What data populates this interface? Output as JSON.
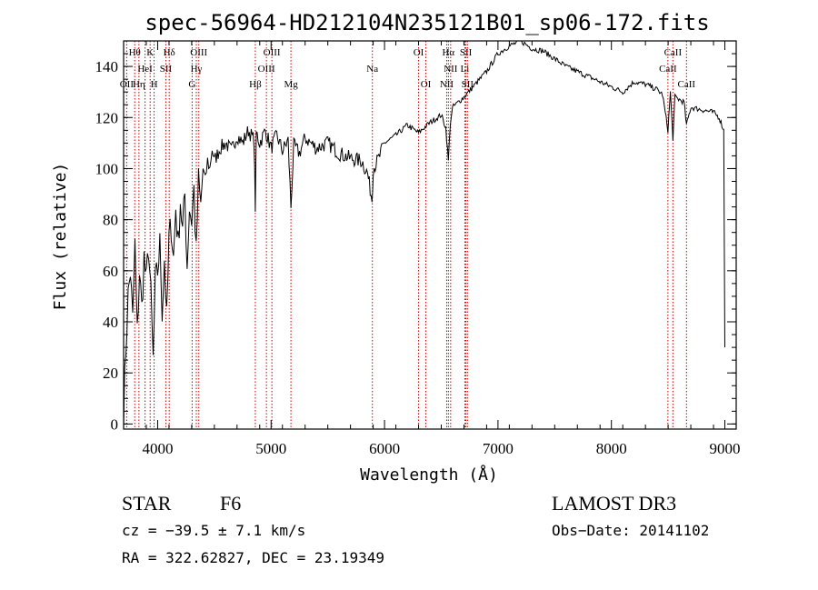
{
  "chart_data": {
    "type": "line",
    "title": "spec-56964-HD212104N235121B01_sp06-172.fits",
    "xlabel": "Wavelength (Å)",
    "ylabel": "Flux (relative)",
    "xlim": [
      3700,
      9100
    ],
    "ylim": [
      -2,
      150
    ],
    "xticks": [
      4000,
      5000,
      6000,
      7000,
      8000,
      9000
    ],
    "yticks": [
      0,
      20,
      40,
      60,
      80,
      100,
      120,
      140
    ],
    "x_minor_step": 200,
    "y_minor_step": 5,
    "series": [
      {
        "name": "spectrum",
        "x": [
          3700,
          3720,
          3740,
          3760,
          3780,
          3800,
          3820,
          3840,
          3860,
          3880,
          3900,
          3920,
          3940,
          3960,
          3980,
          4000,
          4020,
          4040,
          4060,
          4080,
          4100,
          4120,
          4140,
          4160,
          4180,
          4200,
          4220,
          4240,
          4260,
          4280,
          4300,
          4320,
          4340,
          4360,
          4380,
          4400,
          4420,
          4440,
          4460,
          4480,
          4500,
          4550,
          4600,
          4650,
          4700,
          4750,
          4800,
          4850,
          4861,
          4870,
          4900,
          4950,
          5000,
          5050,
          5100,
          5150,
          5175,
          5200,
          5250,
          5300,
          5400,
          5500,
          5600,
          5700,
          5800,
          5850,
          5890,
          5900,
          5950,
          6000,
          6100,
          6200,
          6300,
          6400,
          6500,
          6540,
          6563,
          6580,
          6600,
          6700,
          6800,
          6900,
          7000,
          7100,
          7200,
          7300,
          7400,
          7500,
          7600,
          7700,
          7800,
          7900,
          8000,
          8100,
          8200,
          8300,
          8400,
          8450,
          8498,
          8520,
          8542,
          8560,
          8600,
          8640,
          8662,
          8700,
          8800,
          8900,
          8950,
          8990,
          9000
        ],
        "y": [
          3,
          30,
          50,
          60,
          40,
          70,
          35,
          60,
          45,
          65,
          55,
          70,
          50,
          25,
          55,
          60,
          70,
          45,
          65,
          40,
          72,
          78,
          65,
          85,
          70,
          88,
          75,
          90,
          62,
          85,
          80,
          92,
          66,
          95,
          85,
          100,
          95,
          103,
          100,
          108,
          103,
          108,
          110,
          107,
          113,
          110,
          115,
          111,
          85,
          114,
          110,
          115,
          108,
          113,
          107,
          111,
          85,
          109,
          106,
          112,
          108,
          110,
          106,
          104,
          103,
          98,
          88,
          100,
          104,
          110,
          113,
          117,
          114,
          118,
          121,
          116,
          103,
          118,
          124,
          128,
          133,
          138,
          145,
          148,
          150,
          147,
          146,
          143,
          140,
          138,
          136,
          134,
          132,
          130,
          134,
          133,
          131,
          129,
          115,
          130,
          112,
          128,
          127,
          126,
          117,
          124,
          123,
          122,
          120,
          115,
          30
        ]
      }
    ],
    "line_markers": [
      {
        "label": "Hθ",
        "wavelength": 3798,
        "row": 1
      },
      {
        "label": "OII",
        "wavelength": 3727,
        "row": 3
      },
      {
        "label": "Hη",
        "wavelength": 3835,
        "row": 3
      },
      {
        "label": "HeI",
        "wavelength": 3889,
        "row": 2
      },
      {
        "label": "K",
        "wavelength": 3934,
        "row": 1
      },
      {
        "label": "H",
        "wavelength": 3969,
        "row": 3
      },
      {
        "label": "SII",
        "wavelength": 4072,
        "row": 2
      },
      {
        "label": "Hδ",
        "wavelength": 4102,
        "row": 1
      },
      {
        "label": "G",
        "wavelength": 4304,
        "row": 3
      },
      {
        "label": "Hγ",
        "wavelength": 4341,
        "row": 2
      },
      {
        "label": "OIII",
        "wavelength": 4363,
        "row": 1
      },
      {
        "label": "Hβ",
        "wavelength": 4861,
        "row": 3
      },
      {
        "label": "OIII",
        "wavelength": 4959,
        "row": 2
      },
      {
        "label": "OIII",
        "wavelength": 5007,
        "row": 1
      },
      {
        "label": "Mg",
        "wavelength": 5175,
        "row": 3
      },
      {
        "label": "Na",
        "wavelength": 5893,
        "row": 2
      },
      {
        "label": "OI",
        "wavelength": 6300,
        "row": 1
      },
      {
        "label": "OI",
        "wavelength": 6364,
        "row": 3
      },
      {
        "label": "NII",
        "wavelength": 6548,
        "row": 3
      },
      {
        "label": "NII",
        "wavelength": 6583,
        "row": 2
      },
      {
        "label": "Hα",
        "wavelength": 6563,
        "row": 1
      },
      {
        "label": "Li",
        "wavelength": 6708,
        "row": 2
      },
      {
        "label": "SII",
        "wavelength": 6717,
        "row": 1
      },
      {
        "label": "SII",
        "wavelength": 6731,
        "row": 3
      },
      {
        "label": "CaII",
        "wavelength": 8498,
        "row": 2
      },
      {
        "label": "CaII",
        "wavelength": 8542,
        "row": 1
      },
      {
        "label": "CaII",
        "wavelength": 8662,
        "row": 3
      }
    ]
  },
  "info": {
    "object_class": "STAR",
    "subclass": "F6",
    "survey": "LAMOST DR3",
    "cz": "cz = −39.5 ± 7.1 km/s",
    "obs_date": "Obs−Date: 20141102",
    "coords": "RA = 322.62827, DEC =  23.19349"
  },
  "colors": {
    "axis": "#000000",
    "spectrum": "#000000",
    "marker": "#cc0000",
    "background": "#ffffff"
  }
}
